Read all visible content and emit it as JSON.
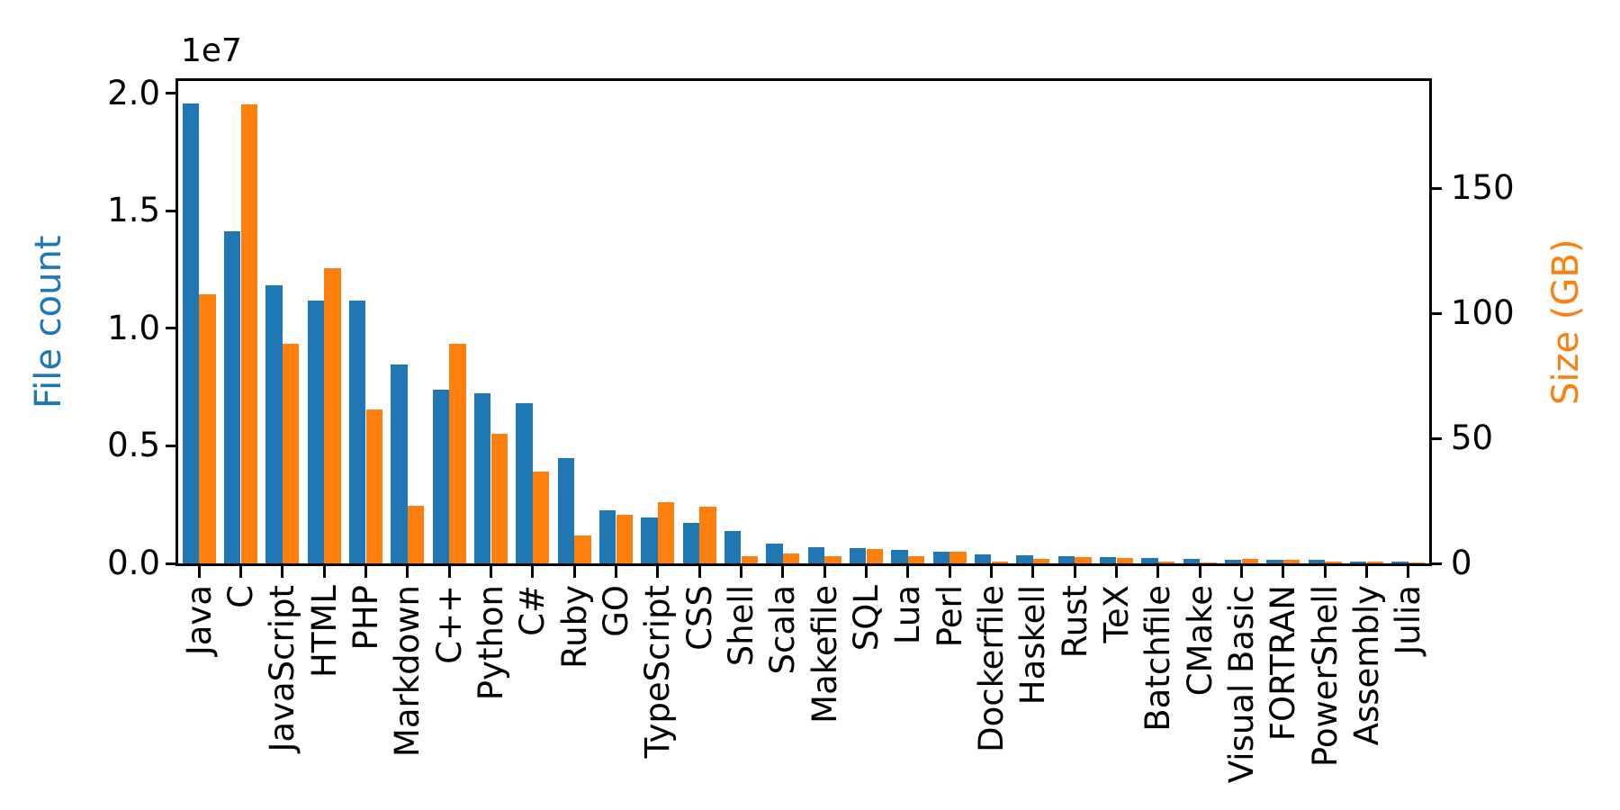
{
  "figure": {
    "offset_text": "1e7",
    "left_axis": {
      "label": "File count",
      "color": "#1f77b4",
      "tick_labels": [
        "0.0",
        "0.5",
        "1.0",
        "1.5",
        "2.0"
      ],
      "tick_values": [
        0,
        5000000,
        10000000,
        15000000,
        20000000
      ],
      "max": 20525600
    },
    "right_axis": {
      "label": "Size (GB)",
      "color": "#ff7f0e",
      "tick_labels": [
        "0",
        "50",
        "100",
        "150"
      ],
      "tick_values": [
        0,
        50,
        100,
        150
      ],
      "max": 193.02
    }
  },
  "chart_data": {
    "type": "bar",
    "title": "",
    "xlabel": "",
    "ylabel_left": "File count",
    "ylabel_right": "Size (GB)",
    "ylim_left": [
      0,
      20525600
    ],
    "ylim_right": [
      0,
      193.02
    ],
    "grid": false,
    "legend_position": "none",
    "categories": [
      "Java",
      "C",
      "JavaScript",
      "HTML",
      "PHP",
      "Markdown",
      "C++",
      "Python",
      "C#",
      "Ruby",
      "GO",
      "TypeScript",
      "CSS",
      "Shell",
      "Scala",
      "Makefile",
      "SQL",
      "Lua",
      "Perl",
      "Dockerfile",
      "Haskell",
      "Rust",
      "TeX",
      "Batchfile",
      "CMake",
      "Visual Basic",
      "FORTRAN",
      "PowerShell",
      "Assembly",
      "Julia"
    ],
    "series": [
      {
        "name": "File count",
        "axis": "left",
        "color": "#1f77b4",
        "values": [
          19550000,
          14140000,
          11840000,
          11180000,
          11180000,
          8460000,
          7380000,
          7230000,
          6810000,
          4470000,
          2270000,
          1940000,
          1730000,
          1390000,
          840000,
          680000,
          660000,
          580000,
          500000,
          370000,
          340000,
          320000,
          250000,
          240000,
          175000,
          156000,
          142000,
          137000,
          83000,
          58000
        ]
      },
      {
        "name": "Size (GB)",
        "axis": "right",
        "color": "#ff7f0e",
        "values": [
          107.7,
          183.8,
          87.8,
          118.1,
          61.4,
          23.1,
          87.7,
          52.0,
          36.8,
          11.0,
          19.3,
          24.6,
          22.7,
          3.0,
          3.9,
          2.9,
          5.7,
          2.8,
          4.7,
          0.7,
          1.9,
          2.7,
          2.2,
          0.7,
          0.5,
          1.9,
          1.6,
          0.7,
          0.8,
          0.3
        ]
      }
    ]
  }
}
